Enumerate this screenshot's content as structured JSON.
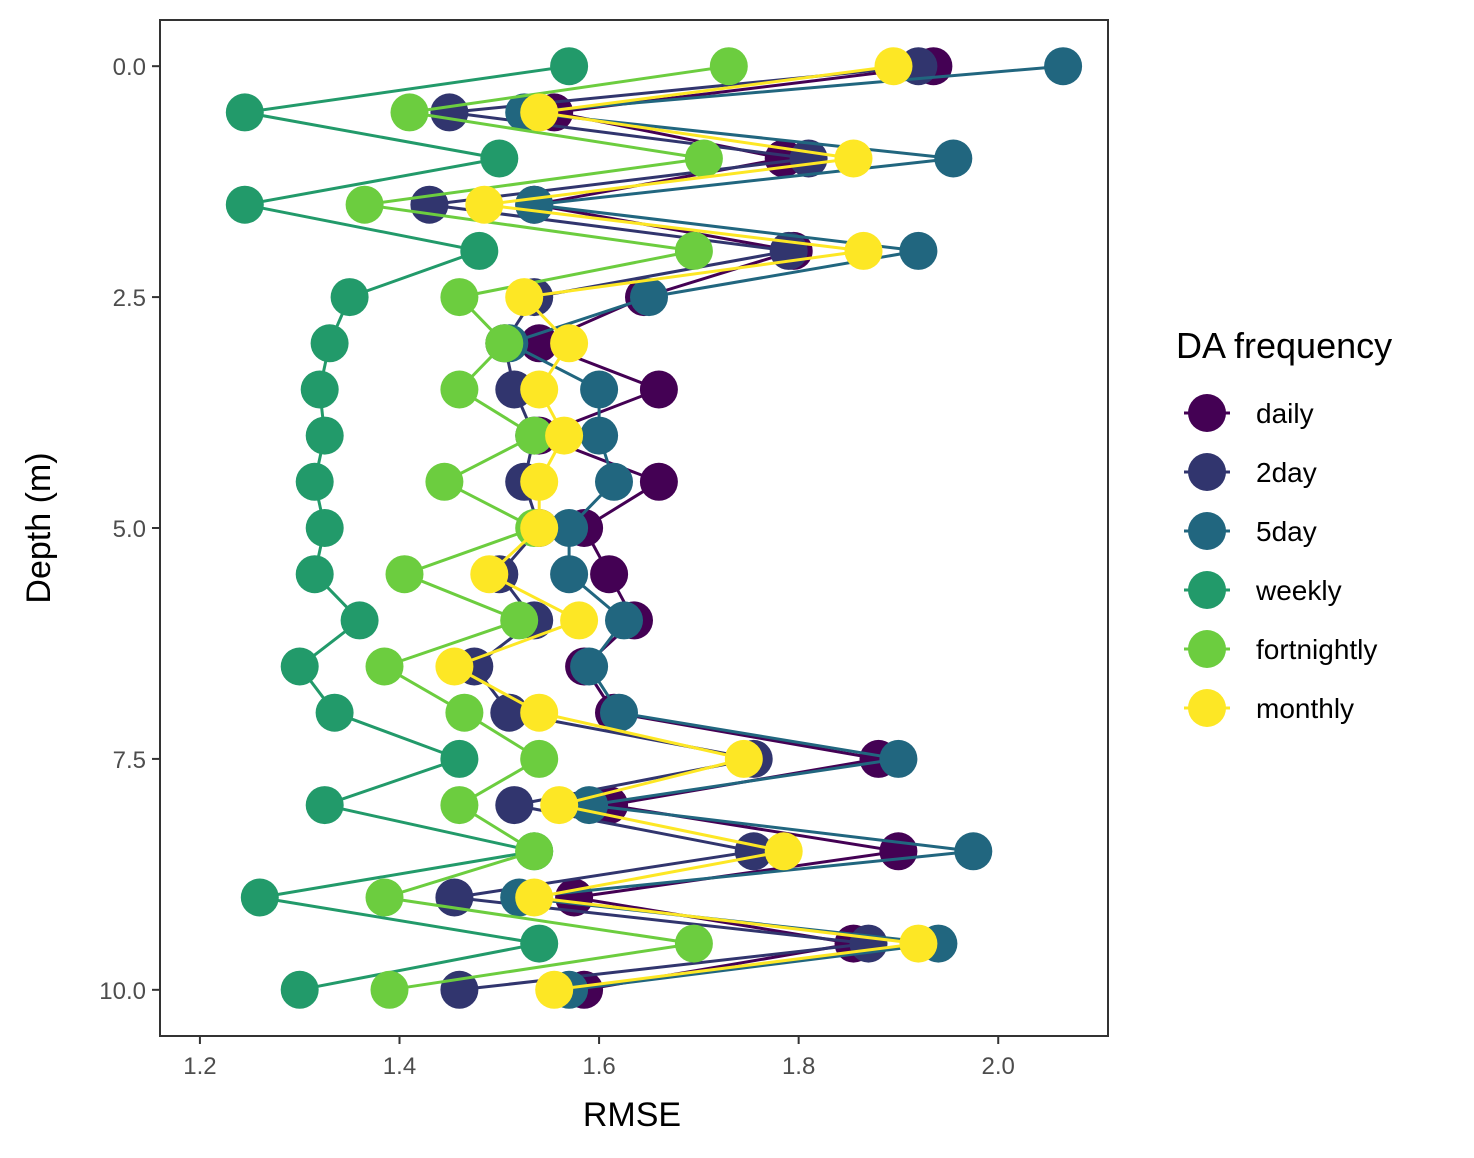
{
  "chart_data": {
    "type": "line",
    "xlabel": "RMSE",
    "ylabel": "Depth (m)",
    "xlim": [
      1.16,
      2.11
    ],
    "ylim": [
      10.5,
      -0.5
    ],
    "y_reversed": true,
    "x_ticks": [
      "1.2",
      "1.4",
      "1.6",
      "1.8",
      "2.0"
    ],
    "x_tick_values": [
      1.2,
      1.4,
      1.6,
      1.8,
      2.0
    ],
    "y_ticks": [
      "0.0",
      "2.5",
      "5.0",
      "7.5",
      "10.0"
    ],
    "y_tick_values": [
      0.0,
      2.5,
      5.0,
      7.5,
      10.0
    ],
    "grid": false,
    "legend": {
      "title": "DA frequency",
      "position": "right"
    },
    "depths": [
      0.0,
      0.5,
      1.0,
      1.5,
      2.0,
      2.5,
      3.0,
      3.5,
      4.0,
      4.5,
      5.0,
      5.5,
      6.0,
      6.5,
      7.0,
      7.5,
      8.0,
      8.5,
      9.0,
      9.5,
      10.0
    ],
    "series": [
      {
        "name": "daily",
        "color": "#440154",
        "values": [
          1.935,
          1.555,
          1.785,
          1.535,
          1.795,
          1.645,
          1.54,
          1.66,
          1.54,
          1.66,
          1.585,
          1.61,
          1.635,
          1.585,
          1.615,
          1.88,
          1.61,
          1.9,
          1.575,
          1.855,
          1.585
        ]
      },
      {
        "name": "2day",
        "color": "#31356e",
        "values": [
          1.92,
          1.45,
          1.81,
          1.43,
          1.79,
          1.535,
          1.505,
          1.515,
          1.535,
          1.525,
          1.54,
          1.5,
          1.535,
          1.475,
          1.51,
          1.755,
          1.515,
          1.755,
          1.455,
          1.87,
          1.46
        ]
      },
      {
        "name": "5day",
        "color": "#21667f",
        "values": [
          2.065,
          1.525,
          1.955,
          1.535,
          1.92,
          1.65,
          1.51,
          1.6,
          1.6,
          1.615,
          1.57,
          1.57,
          1.625,
          1.59,
          1.62,
          1.9,
          1.59,
          1.975,
          1.52,
          1.94,
          1.57
        ]
      },
      {
        "name": "weekly",
        "color": "#229a6a",
        "values": [
          1.57,
          1.245,
          1.5,
          1.245,
          1.48,
          1.35,
          1.33,
          1.32,
          1.325,
          1.315,
          1.325,
          1.315,
          1.36,
          1.3,
          1.335,
          1.46,
          1.325,
          1.535,
          1.26,
          1.54,
          1.3
        ]
      },
      {
        "name": "fortnightly",
        "color": "#6ccd3f",
        "values": [
          1.73,
          1.41,
          1.705,
          1.365,
          1.695,
          1.46,
          1.505,
          1.46,
          1.535,
          1.445,
          1.535,
          1.405,
          1.52,
          1.385,
          1.465,
          1.54,
          1.46,
          1.535,
          1.385,
          1.695,
          1.39
        ]
      },
      {
        "name": "monthly",
        "color": "#fde725",
        "values": [
          1.895,
          1.54,
          1.855,
          1.485,
          1.865,
          1.525,
          1.57,
          1.54,
          1.565,
          1.54,
          1.54,
          1.49,
          1.58,
          1.455,
          1.54,
          1.745,
          1.56,
          1.785,
          1.535,
          1.92,
          1.555
        ]
      }
    ]
  }
}
